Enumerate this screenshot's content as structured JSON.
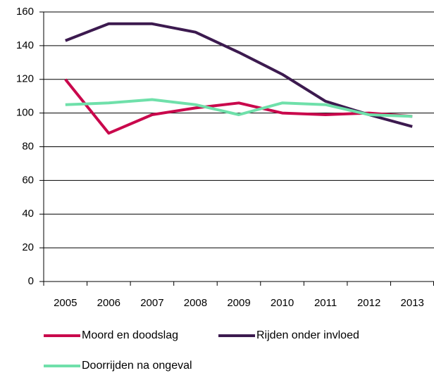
{
  "chart_data": {
    "type": "line",
    "categories": [
      "2005",
      "2006",
      "2007",
      "2008",
      "2009",
      "2010",
      "2011",
      "2012",
      "2013"
    ],
    "series": [
      {
        "name": "Moord en doodslag",
        "color": "#c9084c",
        "values": [
          120,
          88,
          99,
          103,
          106,
          100,
          99,
          100,
          98
        ]
      },
      {
        "name": "Rijden onder invloed",
        "color": "#3c1a4f",
        "values": [
          143,
          153,
          153,
          148,
          136,
          123,
          107,
          99,
          92
        ]
      },
      {
        "name": "Doorrijden na ongeval",
        "color": "#6fe0aa",
        "values": [
          105,
          106,
          108,
          105,
          99,
          106,
          105,
          99,
          98
        ]
      }
    ],
    "ylim": [
      0,
      160
    ],
    "yticks": [
      0,
      20,
      40,
      60,
      80,
      100,
      120,
      140,
      160
    ],
    "grid": true,
    "legend": "bottom"
  }
}
